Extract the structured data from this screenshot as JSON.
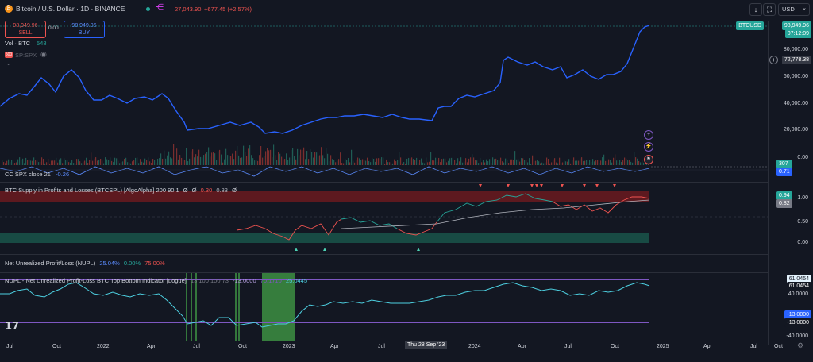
{
  "header": {
    "symbol_title": "Bitcoin / U.S. Dollar · 1D · BINANCE",
    "ohlc_price": "27,043.90",
    "ohlc_change": "+677.45 (+2.57%)",
    "currency": "USD"
  },
  "trade": {
    "sell_price": "98,949.96",
    "sell_label": "SELL",
    "spread": "0.00",
    "buy_price": "98,949.96",
    "buy_label": "BUY"
  },
  "legend": {
    "vol_label": "Vol · BTC",
    "vol_value": "548",
    "spx_label": "SP:SPX"
  },
  "price_axis": {
    "symbol_tag": "BTCUSD",
    "last_price": "98,949.96",
    "countdown": "07:12:09",
    "labels": [
      "80,000.00",
      "60,000.00",
      "40,000.00",
      "20,000.00",
      "0.00"
    ],
    "crosshair_price": "72,778.38",
    "volume_tag": "307",
    "cc_tag": "0.71"
  },
  "cc_pane": {
    "label": "CC SPX close 21",
    "value": "-0.26"
  },
  "spl_pane": {
    "title": "BTC Supply in Profits and Losses (BTCSPL) [AlgoAlpha] 200 90 1",
    "values": [
      "Ø",
      "Ø",
      "0.30",
      "0.33",
      "Ø"
    ],
    "axis_labels": [
      "1.00",
      "0.50",
      "0.00"
    ],
    "tag_value_1": "0.94",
    "tag_value_2": "0.82"
  },
  "nupl_pane": {
    "title": "Net Unrealized Profit/Loss (NUPL)",
    "v1": "25.04%",
    "v2": "0.00%",
    "v3": "75.00%"
  },
  "nupl_tb_pane": {
    "title": "NUPL - Net Unrealized Profit-Loss BTC Top Bottom Indicator [Logue]",
    "params": "13 100 100 73",
    "v1": "-13.0000",
    "v2": "70.1710",
    "v3": "25.0445",
    "axis_label": "40.0000",
    "top_tag": "61.0454",
    "current_tag": "61.0454",
    "bottom_tag": "-13.0000",
    "bottom_tag2": "-13.0000",
    "cut_label": "-40.0000"
  },
  "time_axis": {
    "labels": [
      "Jul",
      "Oct",
      "2022",
      "Apr",
      "Jul",
      "Oct",
      "2023",
      "Apr",
      "Jul",
      "2024",
      "Apr",
      "Jul",
      "Oct",
      "2025",
      "Apr",
      "Jul",
      "Oct"
    ],
    "crosshair_date": "Thu 28 Sep '23"
  },
  "colors": {
    "background": "#131722",
    "price_line": "#2962ff",
    "up": "#26a69a",
    "down": "#ef5350",
    "nupl_line": "#4dd0e1",
    "band_purple": "#7e57c2"
  }
}
